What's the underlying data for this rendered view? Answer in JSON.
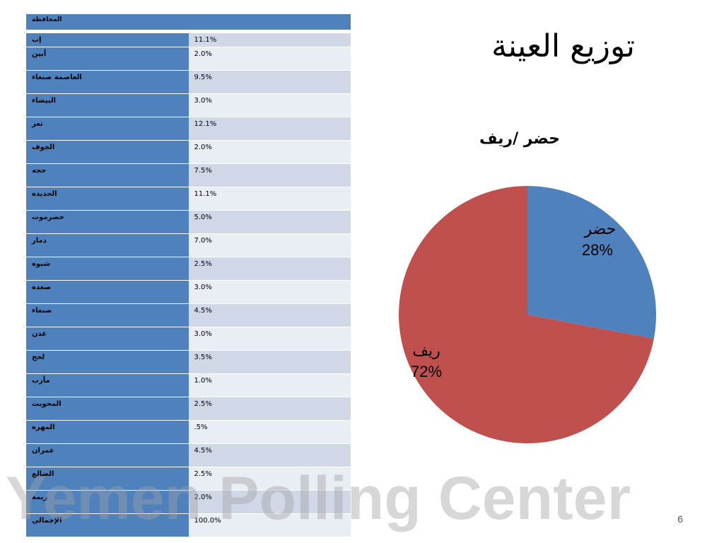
{
  "slide": {
    "title": "توزيع العينة",
    "number": "6",
    "watermark": "Yemen Polling Center"
  },
  "table": {
    "header": "المحافظة",
    "rows": [
      {
        "label": "إب",
        "value": "11.1%"
      },
      {
        "label": "أبين",
        "value": "2.0%"
      },
      {
        "label": "العاصمة صنعاء",
        "value": "9.5%"
      },
      {
        "label": "البيضاء",
        "value": "3.0%"
      },
      {
        "label": "تعز",
        "value": "12.1%"
      },
      {
        "label": "الجوف",
        "value": "2.0%"
      },
      {
        "label": "حجه",
        "value": "7.5%"
      },
      {
        "label": "الحديده",
        "value": "11.1%"
      },
      {
        "label": "حضرموت",
        "value": "5.0%"
      },
      {
        "label": "ذمار",
        "value": "7.0%"
      },
      {
        "label": "شبوه",
        "value": "2.5%"
      },
      {
        "label": "صعده",
        "value": "3.0%"
      },
      {
        "label": "صنعاء",
        "value": "4.5%"
      },
      {
        "label": "عدن",
        "value": "3.0%"
      },
      {
        "label": "لحج",
        "value": "3.5%"
      },
      {
        "label": "مأرب",
        "value": "1.0%"
      },
      {
        "label": "المحويت",
        "value": "2.5%"
      },
      {
        "label": "المهره",
        "value": ".5%"
      },
      {
        "label": "عمران",
        "value": "4.5%"
      },
      {
        "label": "الضالع",
        "value": "2.5%"
      },
      {
        "label": "ريمه",
        "value": "2.0%"
      },
      {
        "label": "الإجمالي",
        "value": "100.0%"
      }
    ]
  },
  "chart_data": {
    "type": "pie",
    "title": "حضر /ريف",
    "categories": [
      "حضر",
      "ريف"
    ],
    "values": [
      28,
      72
    ],
    "value_labels": [
      "28%",
      "72%"
    ],
    "colors": [
      "#4f81bd",
      "#c0504d"
    ],
    "start": "12 o'clock",
    "direction": "clockwise"
  }
}
